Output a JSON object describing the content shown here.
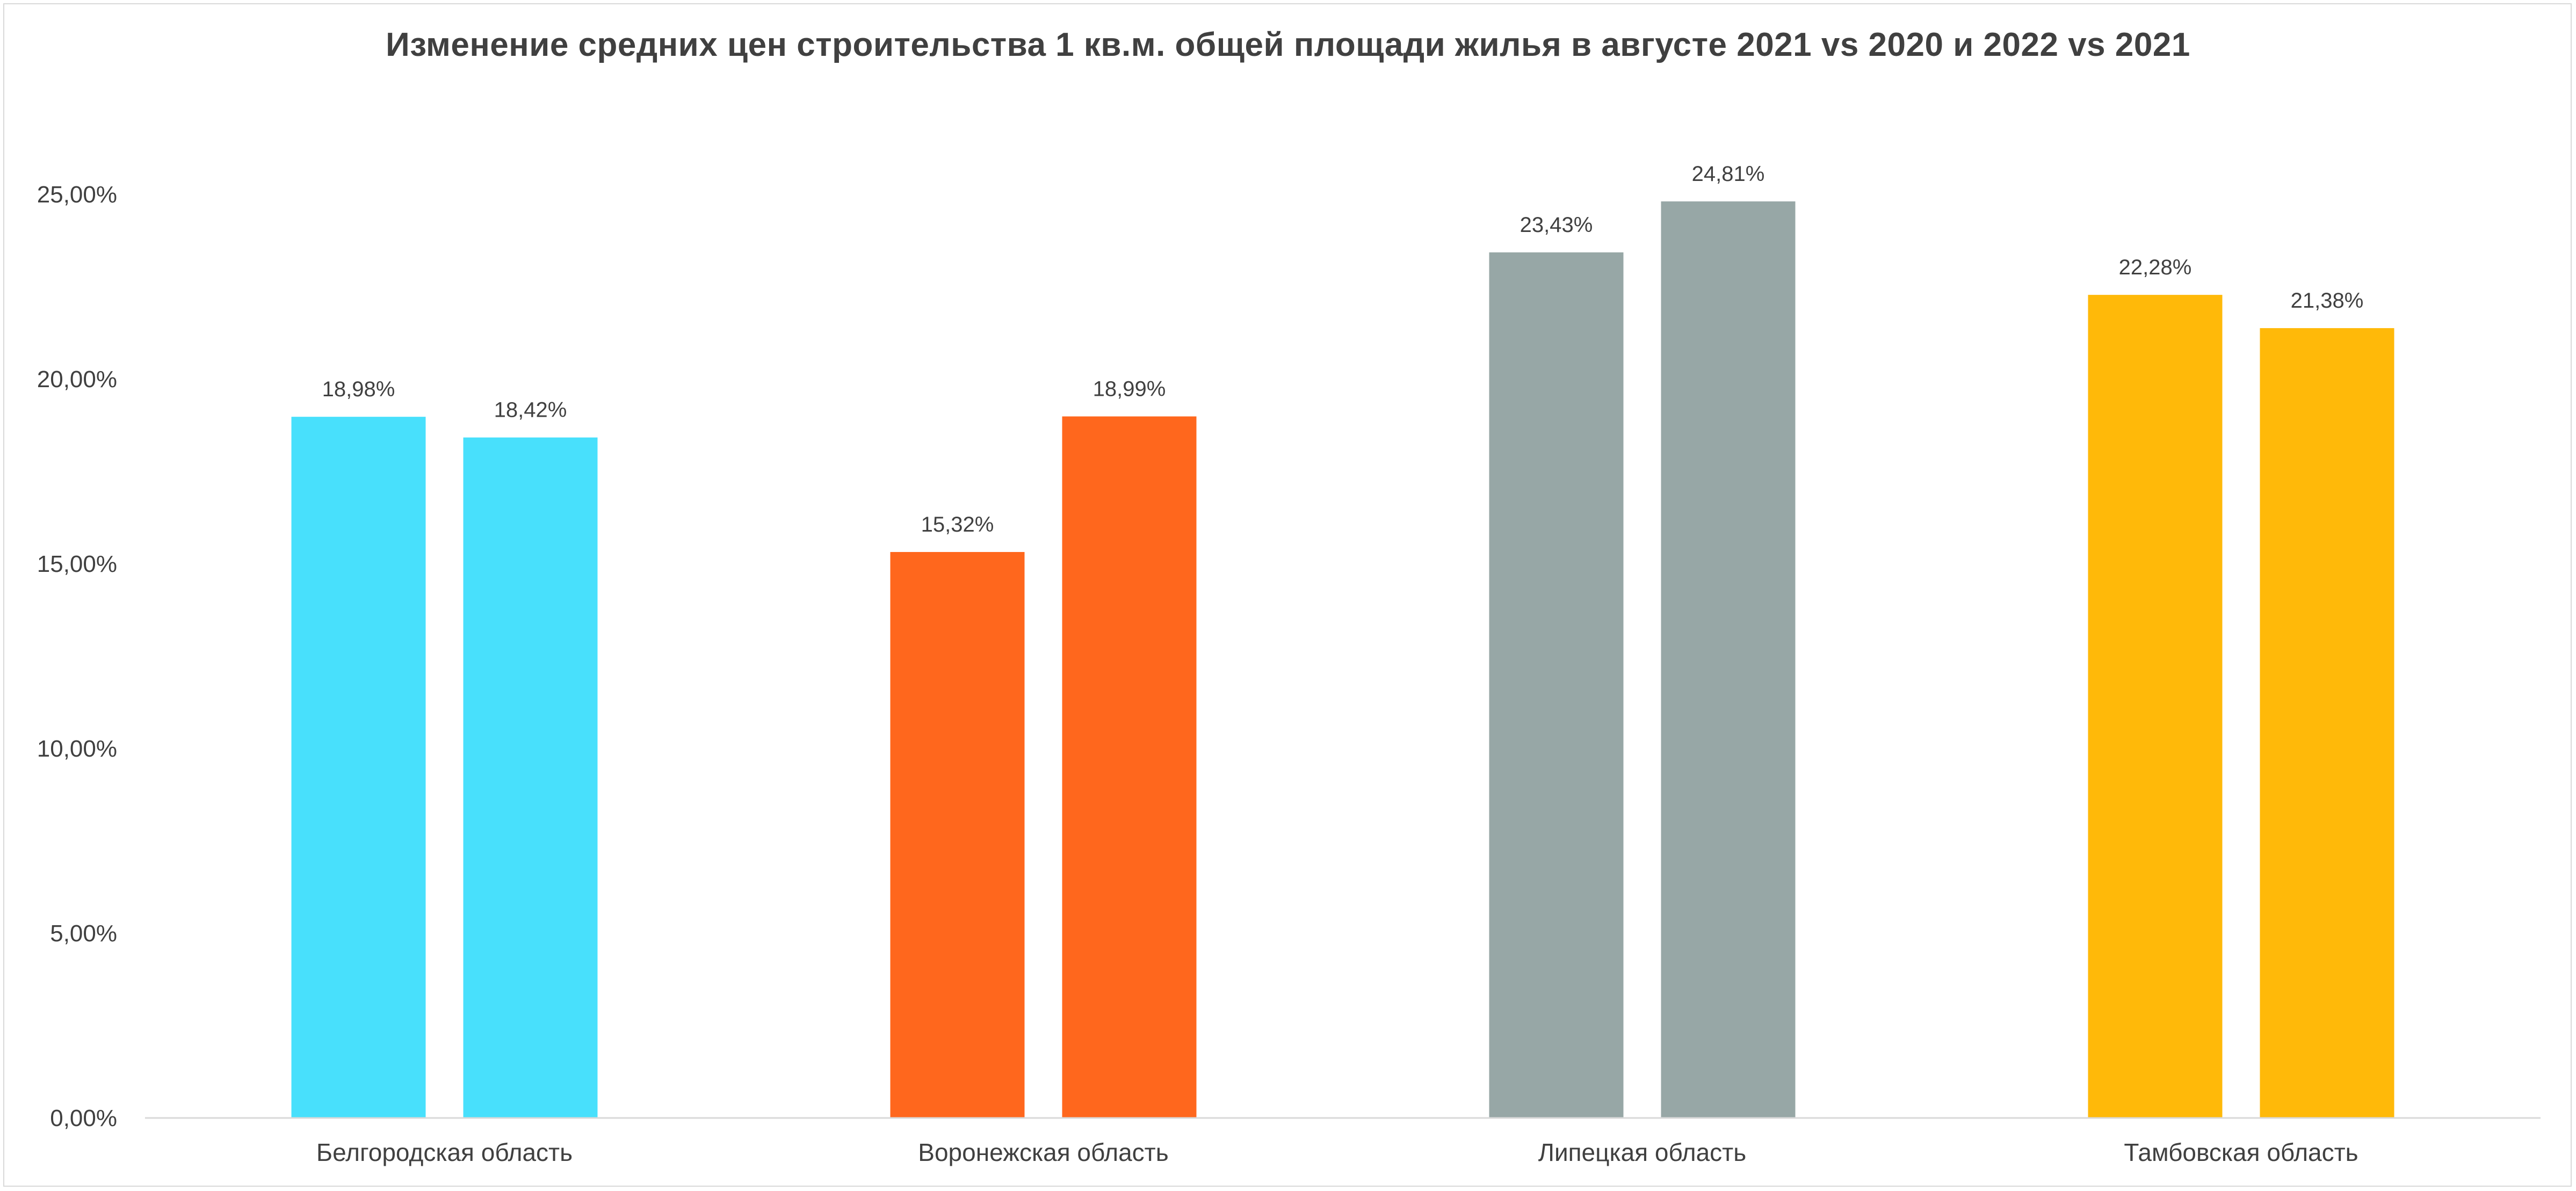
{
  "chart_data": {
    "type": "bar",
    "title": "Изменение средних цен строительства 1 кв.м. общей площади жилья в августе 2021 vs 2020 и 2022 vs 2021",
    "xlabel": "",
    "ylabel": "",
    "categories": [
      "Белгородская область",
      "Воронежская область",
      "Липецкая область",
      "Тамбовская область"
    ],
    "colors": [
      "#48e0fc",
      "#ff671d",
      "#97a7a6",
      "#ffb909"
    ],
    "series": [
      {
        "values": [
          18.98,
          15.32,
          23.43,
          22.28
        ]
      },
      {
        "values": [
          18.42,
          18.99,
          24.81,
          21.38
        ]
      }
    ],
    "data_labels": [
      [
        "18,98%",
        "15,32%",
        "23,43%",
        "22,28%"
      ],
      [
        "18,42%",
        "18,99%",
        "24,81%",
        "21,38%"
      ]
    ],
    "ylim": [
      0,
      25
    ],
    "yticks": [
      0,
      5,
      10,
      15,
      20,
      25
    ],
    "ytick_labels": [
      "0,00%",
      "5,00%",
      "10,00%",
      "15,00%",
      "20,00%",
      "25,00%"
    ],
    "grid": false,
    "legend": "none",
    "axis_color": "#d9d9d9"
  }
}
